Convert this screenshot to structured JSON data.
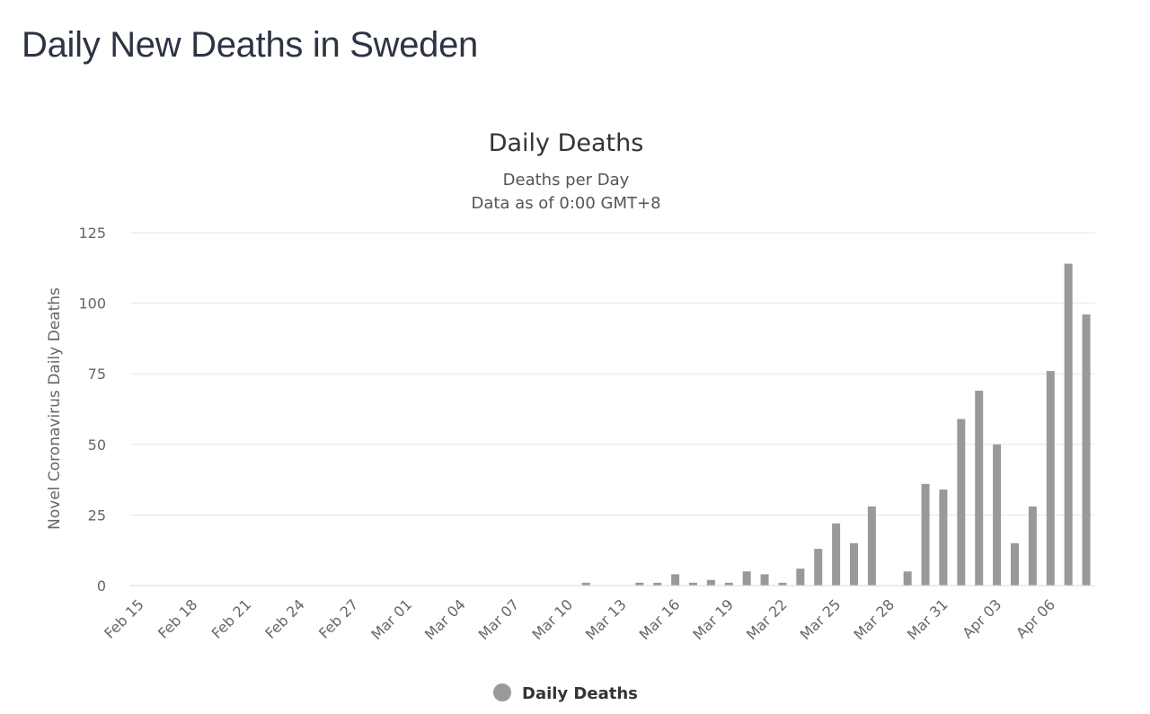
{
  "page": {
    "heading": "Daily New Deaths in Sweden"
  },
  "chart_data": {
    "type": "bar",
    "title": "Daily Deaths",
    "subtitle_lines": [
      "Deaths per Day",
      "Data as of 0:00 GMT+8"
    ],
    "ylabel": "Novel Coronavirus Daily Deaths",
    "xlabel": "",
    "ylim": [
      0,
      125
    ],
    "yticks": [
      0,
      25,
      50,
      75,
      100,
      125
    ],
    "grid": true,
    "legend_position": "bottom",
    "series_color": "#999999",
    "categories": [
      "Feb 15",
      "Feb 16",
      "Feb 17",
      "Feb 18",
      "Feb 19",
      "Feb 20",
      "Feb 21",
      "Feb 22",
      "Feb 23",
      "Feb 24",
      "Feb 25",
      "Feb 26",
      "Feb 27",
      "Feb 28",
      "Feb 29",
      "Mar 01",
      "Mar 02",
      "Mar 03",
      "Mar 04",
      "Mar 05",
      "Mar 06",
      "Mar 07",
      "Mar 08",
      "Mar 09",
      "Mar 10",
      "Mar 11",
      "Mar 12",
      "Mar 13",
      "Mar 14",
      "Mar 15",
      "Mar 16",
      "Mar 17",
      "Mar 18",
      "Mar 19",
      "Mar 20",
      "Mar 21",
      "Mar 22",
      "Mar 23",
      "Mar 24",
      "Mar 25",
      "Mar 26",
      "Mar 27",
      "Mar 28",
      "Mar 29",
      "Mar 30",
      "Mar 31",
      "Apr 01",
      "Apr 02",
      "Apr 03",
      "Apr 04",
      "Apr 05",
      "Apr 06",
      "Apr 07",
      "Apr 08"
    ],
    "x_tick_labels": [
      "Feb 15",
      "Feb 18",
      "Feb 21",
      "Feb 24",
      "Feb 27",
      "Mar 01",
      "Mar 04",
      "Mar 07",
      "Mar 10",
      "Mar 13",
      "Mar 16",
      "Mar 19",
      "Mar 22",
      "Mar 25",
      "Mar 28",
      "Mar 31",
      "Apr 03",
      "Apr 06"
    ],
    "series": [
      {
        "name": "Daily Deaths",
        "values": [
          0,
          0,
          0,
          0,
          0,
          0,
          0,
          0,
          0,
          0,
          0,
          0,
          0,
          0,
          0,
          0,
          0,
          0,
          0,
          0,
          0,
          0,
          0,
          0,
          0,
          1,
          0,
          0,
          1,
          1,
          4,
          1,
          2,
          1,
          5,
          4,
          1,
          6,
          13,
          22,
          15,
          28,
          0,
          5,
          36,
          34,
          59,
          69,
          50,
          15,
          28,
          76,
          114,
          96
        ]
      }
    ]
  }
}
